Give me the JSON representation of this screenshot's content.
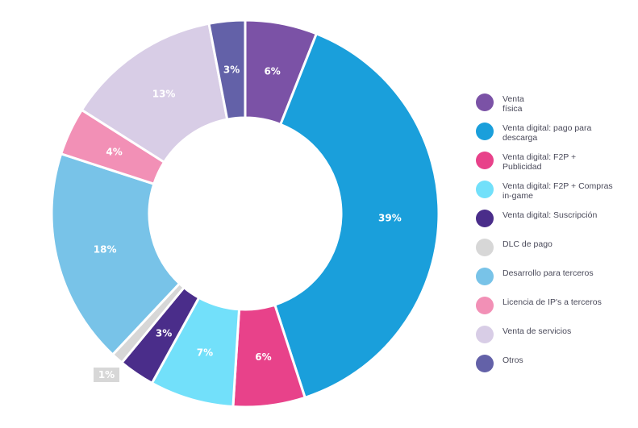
{
  "chart_data": {
    "type": "pie",
    "variant": "donut",
    "slices": [
      {
        "label": "Venta\nfísica",
        "value": 6,
        "text": "6%",
        "color": "#7b52a6"
      },
      {
        "label": "Venta digital: pago para\ndescarga",
        "value": 39,
        "text": "39%",
        "color": "#1a9fdb"
      },
      {
        "label": "Venta digital: F2P +\nPublicidad",
        "value": 6,
        "text": "6%",
        "color": "#e8428a"
      },
      {
        "label": "Venta digital: F2P + Compras\nin-game",
        "value": 7,
        "text": "7%",
        "color": "#72e0fa"
      },
      {
        "label": "Venta digital: Suscripción",
        "value": 3,
        "text": "3%",
        "color": "#4a2d8a"
      },
      {
        "label": "DLC de pago",
        "value": 1,
        "text": "1%",
        "color": "#d7d7d7"
      },
      {
        "label": "Desarrollo para terceros",
        "value": 18,
        "text": "18%",
        "color": "#78c3e8"
      },
      {
        "label": "Licencia de IP's a terceros",
        "value": 4,
        "text": "4%",
        "color": "#f290b6"
      },
      {
        "label": "Venta de servicios",
        "value": 13,
        "text": "13%",
        "color": "#d8cde6"
      },
      {
        "label": "Otros",
        "value": 3,
        "text": "3%",
        "color": "#6361a8"
      }
    ],
    "legend_position": "right"
  }
}
